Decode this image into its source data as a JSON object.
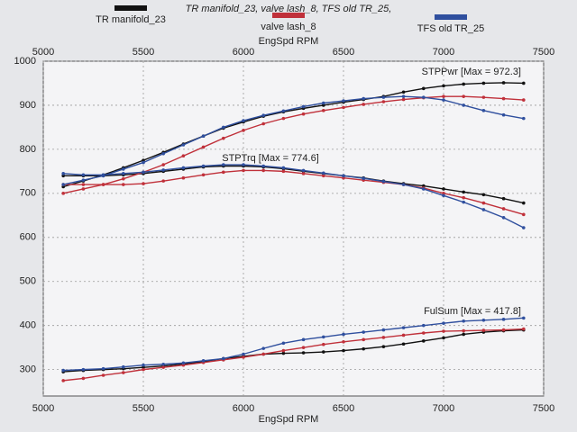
{
  "chart_data": {
    "type": "line",
    "subtitle": "TR manifold_23, valve lash_8, TFS old TR_25,",
    "x_label": "EngSpd RPM",
    "x": [
      5100,
      5200,
      5300,
      5400,
      5500,
      5600,
      5700,
      5800,
      5900,
      6000,
      6100,
      6200,
      6300,
      6400,
      6500,
      6600,
      6700,
      6800,
      6900,
      7000,
      7100,
      7200,
      7300,
      7400
    ],
    "xlim": [
      5000,
      7500
    ],
    "xticks": [
      5000,
      5500,
      6000,
      6500,
      7000,
      7500
    ],
    "ylim": [
      240,
      1000
    ],
    "yticks": [
      300,
      400,
      500,
      600,
      700,
      800,
      900,
      1000
    ],
    "grid": true,
    "annotations": [
      "STPPwr [Max = 972.3]",
      "STPTrq [Max = 774.6]",
      "FulSum [Max = 417.8]"
    ],
    "series": [
      {
        "name": "TR manifold_23",
        "color": "#111111",
        "power": [
          715,
          728,
          742,
          758,
          775,
          793,
          812,
          830,
          848,
          862,
          875,
          885,
          893,
          900,
          907,
          913,
          920,
          930,
          938,
          944,
          948,
          950,
          951,
          950
        ],
        "torque": [
          740,
          740,
          740,
          742,
          745,
          750,
          755,
          760,
          762,
          762,
          760,
          756,
          750,
          745,
          740,
          735,
          728,
          722,
          717,
          710,
          703,
          697,
          688,
          678
        ],
        "fuel": [
          295,
          298,
          300,
          302,
          305,
          308,
          313,
          318,
          325,
          330,
          335,
          337,
          338,
          340,
          343,
          347,
          352,
          358,
          365,
          372,
          380,
          385,
          388,
          390
        ]
      },
      {
        "name": "valve lash_8",
        "color": "#c0303a",
        "power": [
          700,
          710,
          720,
          733,
          748,
          765,
          785,
          805,
          825,
          843,
          858,
          870,
          880,
          888,
          895,
          902,
          908,
          913,
          917,
          920,
          920,
          918,
          915,
          912
        ],
        "torque": [
          720,
          720,
          720,
          720,
          722,
          728,
          735,
          742,
          748,
          752,
          752,
          750,
          745,
          740,
          735,
          730,
          725,
          720,
          712,
          700,
          690,
          678,
          665,
          652
        ],
        "fuel": [
          275,
          280,
          287,
          293,
          300,
          305,
          310,
          316,
          322,
          328,
          335,
          343,
          350,
          357,
          363,
          368,
          373,
          378,
          383,
          387,
          388,
          389,
          390,
          392
        ]
      },
      {
        "name": "TFS old TR_25",
        "color": "#2f4f9e",
        "power": [
          720,
          730,
          740,
          755,
          770,
          790,
          810,
          830,
          850,
          865,
          877,
          887,
          897,
          905,
          910,
          915,
          918,
          920,
          918,
          912,
          900,
          888,
          878,
          870
        ],
        "torque": [
          745,
          742,
          742,
          745,
          748,
          753,
          758,
          762,
          765,
          765,
          762,
          758,
          752,
          746,
          740,
          734,
          727,
          720,
          710,
          695,
          680,
          663,
          645,
          622
        ],
        "fuel": [
          298,
          300,
          302,
          306,
          310,
          312,
          315,
          320,
          325,
          335,
          348,
          360,
          368,
          374,
          380,
          385,
          390,
          395,
          400,
          405,
          410,
          412,
          414,
          417
        ]
      }
    ]
  }
}
